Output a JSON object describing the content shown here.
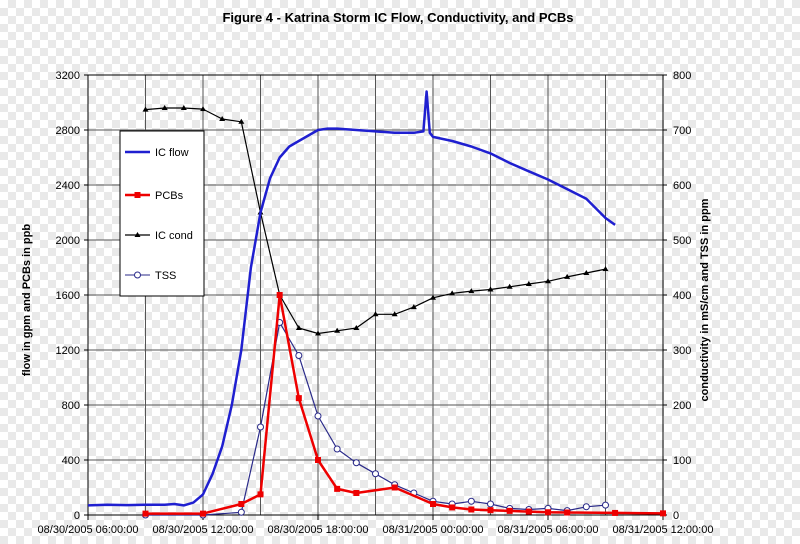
{
  "chart_data": {
    "type": "line",
    "title": "Figure 4 - Katrina Storm IC Flow, Conductivity, and PCBs",
    "ylabel_left": "flow in gpm and PCBs in ppb",
    "ylabel_right": "conductivity in mS/cm and TSS in ppm",
    "ylim_left": [
      0,
      3200
    ],
    "ylim_right": [
      0,
      800
    ],
    "xlim": [
      "2005-08-30 06:00",
      "2005-08-31 12:00"
    ],
    "yticks_left": [
      "0",
      "400",
      "800",
      "1200",
      "1600",
      "2000",
      "2400",
      "2800",
      "3200"
    ],
    "yticks_right": [
      "0",
      "100",
      "200",
      "300",
      "400",
      "500",
      "600",
      "700",
      "800"
    ],
    "xticks": [
      {
        "t": "2005-08-30 06:00",
        "label": "08/30/2005 06:00:00"
      },
      {
        "t": "2005-08-30 12:00",
        "label": "08/30/2005 12:00:00"
      },
      {
        "t": "2005-08-30 18:00",
        "label": "08/30/2005 18:00:00"
      },
      {
        "t": "2005-08-31 00:00",
        "label": "08/31/2005 00:00:00"
      },
      {
        "t": "2005-08-31 06:00",
        "label": "08/31/2005 06:00:00"
      },
      {
        "t": "2005-08-31 12:00",
        "label": "08/31/2005 12:00:00"
      }
    ],
    "xgrid_times": [
      "2005-08-30 09:00",
      "2005-08-30 15:00",
      "2005-08-30 21:00",
      "2005-08-31 03:00",
      "2005-08-31 09:00"
    ],
    "grid": true,
    "legend_position": "left",
    "series": [
      {
        "name": "IC flow",
        "axis": "left",
        "color": "#1f1fd0",
        "marker": "none",
        "points": [
          [
            "2005-08-30 06:00",
            70
          ],
          [
            "2005-08-30 07:00",
            75
          ],
          [
            "2005-08-30 08:00",
            72
          ],
          [
            "2005-08-30 09:00",
            75
          ],
          [
            "2005-08-30 10:00",
            75
          ],
          [
            "2005-08-30 10:30",
            80
          ],
          [
            "2005-08-30 11:00",
            70
          ],
          [
            "2005-08-30 11:30",
            90
          ],
          [
            "2005-08-30 12:00",
            150
          ],
          [
            "2005-08-30 12:30",
            300
          ],
          [
            "2005-08-30 13:00",
            500
          ],
          [
            "2005-08-30 13:30",
            800
          ],
          [
            "2005-08-30 14:00",
            1200
          ],
          [
            "2005-08-30 14:30",
            1800
          ],
          [
            "2005-08-30 15:00",
            2200
          ],
          [
            "2005-08-30 15:30",
            2450
          ],
          [
            "2005-08-30 16:00",
            2600
          ],
          [
            "2005-08-30 16:30",
            2680
          ],
          [
            "2005-08-30 17:00",
            2720
          ],
          [
            "2005-08-30 17:30",
            2760
          ],
          [
            "2005-08-30 18:00",
            2800
          ],
          [
            "2005-08-30 18:30",
            2810
          ],
          [
            "2005-08-30 19:00",
            2810
          ],
          [
            "2005-08-30 20:00",
            2800
          ],
          [
            "2005-08-30 21:00",
            2790
          ],
          [
            "2005-08-30 22:00",
            2780
          ],
          [
            "2005-08-30 23:00",
            2780
          ],
          [
            "2005-08-30 23:30",
            2790
          ],
          [
            "2005-08-30 23:40",
            3080
          ],
          [
            "2005-08-30 23:50",
            2780
          ],
          [
            "2005-08-31 00:00",
            2750
          ],
          [
            "2005-08-31 01:00",
            2720
          ],
          [
            "2005-08-31 02:00",
            2680
          ],
          [
            "2005-08-31 03:00",
            2630
          ],
          [
            "2005-08-31 04:00",
            2560
          ],
          [
            "2005-08-31 05:00",
            2500
          ],
          [
            "2005-08-31 06:00",
            2440
          ],
          [
            "2005-08-31 07:00",
            2370
          ],
          [
            "2005-08-31 08:00",
            2300
          ],
          [
            "2005-08-31 09:00",
            2160
          ],
          [
            "2005-08-31 09:30",
            2110
          ]
        ]
      },
      {
        "name": "PCBs",
        "axis": "left",
        "color": "#ee0000",
        "marker": "square",
        "points": [
          [
            "2005-08-30 09:00",
            10
          ],
          [
            "2005-08-30 12:00",
            10
          ],
          [
            "2005-08-30 14:00",
            80
          ],
          [
            "2005-08-30 15:00",
            150
          ],
          [
            "2005-08-30 16:00",
            1600
          ],
          [
            "2005-08-30 17:00",
            850
          ],
          [
            "2005-08-30 18:00",
            400
          ],
          [
            "2005-08-30 19:00",
            190
          ],
          [
            "2005-08-30 20:00",
            160
          ],
          [
            "2005-08-30 22:00",
            200
          ],
          [
            "2005-08-31 00:00",
            80
          ],
          [
            "2005-08-31 01:00",
            55
          ],
          [
            "2005-08-31 02:00",
            40
          ],
          [
            "2005-08-31 03:00",
            35
          ],
          [
            "2005-08-31 04:00",
            30
          ],
          [
            "2005-08-31 05:00",
            25
          ],
          [
            "2005-08-31 06:00",
            20
          ],
          [
            "2005-08-31 07:00",
            18
          ],
          [
            "2005-08-31 09:30",
            15
          ],
          [
            "2005-08-31 12:00",
            12
          ]
        ]
      },
      {
        "name": "IC cond",
        "axis": "right",
        "color": "#000000",
        "marker": "triangle",
        "points": [
          [
            "2005-08-30 09:00",
            737
          ],
          [
            "2005-08-30 10:00",
            740
          ],
          [
            "2005-08-30 11:00",
            740
          ],
          [
            "2005-08-30 12:00",
            738
          ],
          [
            "2005-08-30 13:00",
            720
          ],
          [
            "2005-08-30 14:00",
            715
          ],
          [
            "2005-08-30 15:00",
            550
          ],
          [
            "2005-08-30 16:00",
            400
          ],
          [
            "2005-08-30 17:00",
            340
          ],
          [
            "2005-08-30 18:00",
            330
          ],
          [
            "2005-08-30 19:00",
            335
          ],
          [
            "2005-08-30 20:00",
            340
          ],
          [
            "2005-08-30 21:00",
            365
          ],
          [
            "2005-08-30 22:00",
            365
          ],
          [
            "2005-08-30 23:00",
            378
          ],
          [
            "2005-08-31 00:00",
            395
          ],
          [
            "2005-08-31 01:00",
            403
          ],
          [
            "2005-08-31 02:00",
            407
          ],
          [
            "2005-08-31 03:00",
            410
          ],
          [
            "2005-08-31 04:00",
            415
          ],
          [
            "2005-08-31 05:00",
            420
          ],
          [
            "2005-08-31 06:00",
            425
          ],
          [
            "2005-08-31 07:00",
            433
          ],
          [
            "2005-08-31 08:00",
            440
          ],
          [
            "2005-08-31 09:00",
            447
          ]
        ]
      },
      {
        "name": "TSS",
        "axis": "right",
        "color": "#2a2a8a",
        "marker": "circle",
        "points": [
          [
            "2005-08-30 09:00",
            0
          ],
          [
            "2005-08-30 12:00",
            0
          ],
          [
            "2005-08-30 14:00",
            5
          ],
          [
            "2005-08-30 15:00",
            160
          ],
          [
            "2005-08-30 16:00",
            350
          ],
          [
            "2005-08-30 17:00",
            290
          ],
          [
            "2005-08-30 18:00",
            180
          ],
          [
            "2005-08-30 19:00",
            120
          ],
          [
            "2005-08-30 20:00",
            95
          ],
          [
            "2005-08-30 21:00",
            75
          ],
          [
            "2005-08-30 22:00",
            55
          ],
          [
            "2005-08-30 23:00",
            40
          ],
          [
            "2005-08-31 00:00",
            25
          ],
          [
            "2005-08-31 01:00",
            20
          ],
          [
            "2005-08-31 02:00",
            25
          ],
          [
            "2005-08-31 03:00",
            20
          ],
          [
            "2005-08-31 04:00",
            12
          ],
          [
            "2005-08-31 05:00",
            10
          ],
          [
            "2005-08-31 06:00",
            12
          ],
          [
            "2005-08-31 07:00",
            8
          ],
          [
            "2005-08-31 08:00",
            15
          ],
          [
            "2005-08-31 09:00",
            18
          ]
        ]
      }
    ]
  }
}
